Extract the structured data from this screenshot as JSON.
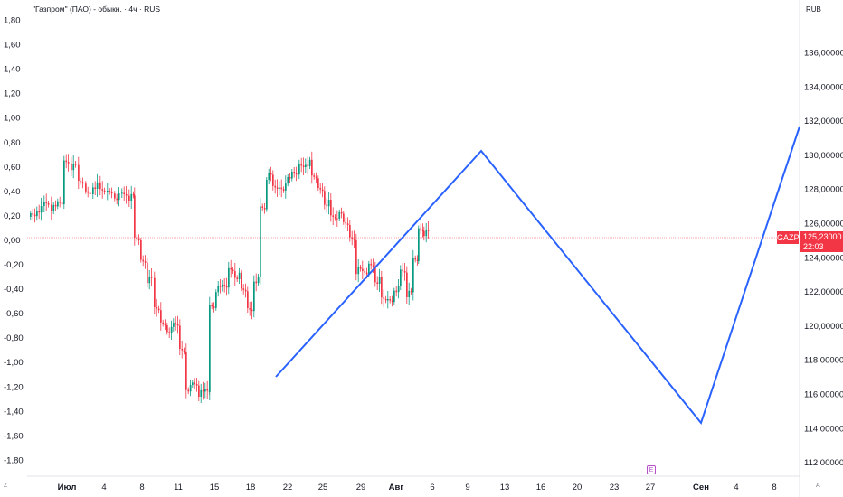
{
  "header": {
    "title": "\"Газпром\" (ПАО) - обыкн. · 4ч · RUS",
    "currency": "RUB"
  },
  "left_axis": {
    "labels": [
      "1,80",
      "1,60",
      "1,40",
      "1,20",
      "1,00",
      "0,80",
      "0,60",
      "0,40",
      "0,20",
      "0,00",
      "-0,20",
      "-0,40",
      "-0,60",
      "-0,80",
      "-1,00",
      "-1,20",
      "-1,40",
      "-1,60",
      "-1,80"
    ]
  },
  "right_axis": {
    "labels": [
      "136,00000",
      "134,00000",
      "132,00000",
      "130,00000",
      "128,00000",
      "126,00000",
      "124,00000",
      "122,00000",
      "120,00000",
      "118,00000",
      "116,00000",
      "114,00000",
      "112,00000"
    ]
  },
  "time_axis": {
    "labels": [
      "Июл",
      "4",
      "8",
      "11",
      "15",
      "18",
      "22",
      "25",
      "29",
      "Авг",
      "6",
      "9",
      "13",
      "16",
      "20",
      "23",
      "27",
      "Сен",
      "4",
      "8"
    ],
    "bold": [
      "Июл",
      "Авг",
      "Сен"
    ]
  },
  "ticker": {
    "symbol": "GAZP",
    "price": "125,23000",
    "countdown": "22:03"
  },
  "earnings_marker": "E",
  "corner_left": "Z",
  "corner_right": "A",
  "colors": {
    "up": "#089981",
    "down": "#f23645",
    "drawing": "#2962ff",
    "price_line": "#f23645",
    "axis_text": "#131722"
  }
}
